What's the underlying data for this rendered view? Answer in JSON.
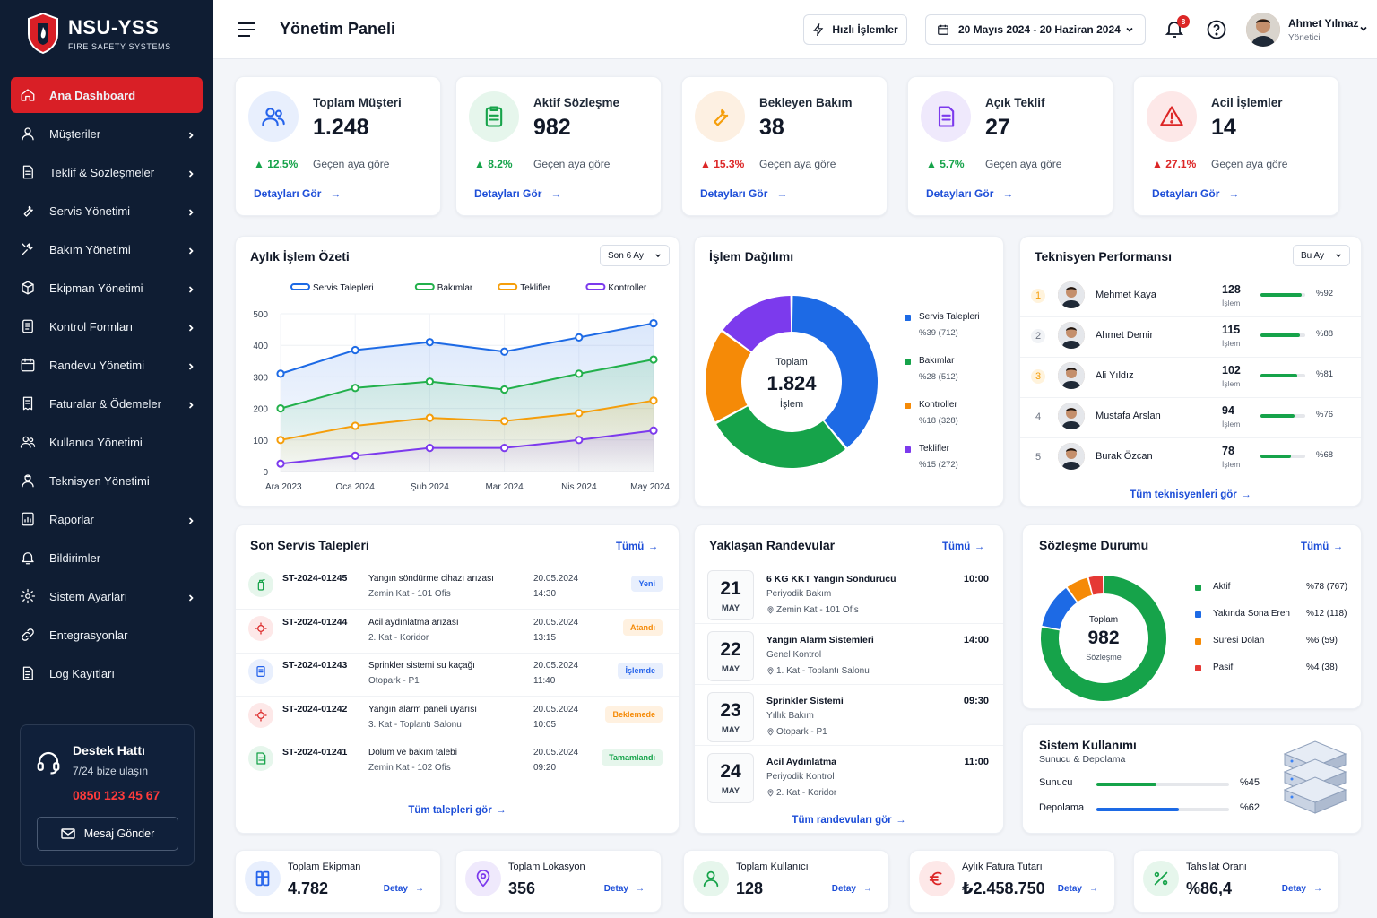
{
  "brand": {
    "title": "NSU-YSS",
    "subtitle": "FIRE SAFETY SYSTEMS"
  },
  "sidebar": {
    "items": [
      {
        "label": "Ana Dashboard",
        "icon": "home-icon",
        "active": true,
        "chevron": false
      },
      {
        "label": "Müşteriler",
        "icon": "user-icon",
        "chevron": true
      },
      {
        "label": "Teklif & Sözleşmeler",
        "icon": "document-icon",
        "chevron": true
      },
      {
        "label": "Servis Yönetimi",
        "icon": "wrench-icon",
        "chevron": true
      },
      {
        "label": "Bakım Yönetimi",
        "icon": "tools-icon",
        "chevron": true
      },
      {
        "label": "Ekipman Yönetimi",
        "icon": "box-icon",
        "chevron": true
      },
      {
        "label": "Kontrol Formları",
        "icon": "form-icon",
        "chevron": true
      },
      {
        "label": "Randevu Yönetimi",
        "icon": "calendar-icon",
        "chevron": true
      },
      {
        "label": "Faturalar & Ödemeler",
        "icon": "invoice-icon",
        "chevron": true
      },
      {
        "label": "Kullanıcı Yönetimi",
        "icon": "users-icon",
        "chevron": false
      },
      {
        "label": "Teknisyen Yönetimi",
        "icon": "technician-icon",
        "chevron": false
      },
      {
        "label": "Raporlar",
        "icon": "report-icon",
        "chevron": true
      },
      {
        "label": "Bildirimler",
        "icon": "bell-icon",
        "chevron": false
      },
      {
        "label": "Sistem Ayarları",
        "icon": "gear-icon",
        "chevron": true
      },
      {
        "label": "Entegrasyonlar",
        "icon": "link-icon",
        "chevron": false
      },
      {
        "label": "Log Kayıtları",
        "icon": "log-icon",
        "chevron": false
      }
    ]
  },
  "support": {
    "title": "Destek Hattı",
    "subtitle": "7/24 bize ulaşın",
    "phone": "0850 123 45 67",
    "button": "Mesaj Gönder"
  },
  "header": {
    "title": "Yönetim Paneli",
    "quick": "Hızlı İşlemler",
    "date_range": "20 Mayıs 2024 - 20 Haziran 2024",
    "notif_count": "8",
    "user_name": "Ahmet Yılmaz",
    "user_role": "Yönetici"
  },
  "stats": [
    {
      "title": "Toplam Müşteri",
      "value": "1.248",
      "delta": "12.5%",
      "dir": "up",
      "note": "Geçen aya göre",
      "link": "Detayları Gör",
      "color": "#2563eb",
      "bg": "#e8effd",
      "icon": "users-icon",
      "dcolor": "#16a34a"
    },
    {
      "title": "Aktif Sözleşme",
      "value": "982",
      "delta": "8.2%",
      "dir": "up",
      "note": "Geçen aya göre",
      "link": "Detayları Gör",
      "color": "#16a34a",
      "bg": "#e6f6ec",
      "icon": "clipboard-icon",
      "dcolor": "#16a34a"
    },
    {
      "title": "Bekleyen Bakım",
      "value": "38",
      "delta": "15.3%",
      "dir": "up",
      "note": "Geçen aya göre",
      "link": "Detayları Gör",
      "color": "#f59e0b",
      "bg": "#fdf0e2",
      "icon": "wrench-icon",
      "dcolor": "#dc2626"
    },
    {
      "title": "Açık Teklif",
      "value": "27",
      "delta": "5.7%",
      "dir": "up",
      "note": "Geçen aya göre",
      "link": "Detayları Gör",
      "color": "#7c3aed",
      "bg": "#efe9fc",
      "icon": "document-icon",
      "dcolor": "#16a34a"
    },
    {
      "title": "Acil İşlemler",
      "value": "14",
      "delta": "27.1%",
      "dir": "up",
      "note": "Geçen aya göre",
      "link": "Detayları Gör",
      "color": "#dc2626",
      "bg": "#fde8e8",
      "icon": "warning-icon",
      "dcolor": "#dc2626"
    }
  ],
  "monthly": {
    "title": "Aylık İşlem Özeti",
    "filter": "Son 6 Ay"
  },
  "distribution": {
    "title": "İşlem Dağılımı",
    "center_label": "Toplam",
    "center_value": "1.824",
    "center_sub": "İşlem",
    "items": [
      {
        "name": "Servis Talepleri",
        "detail": "%39 (712)",
        "color": "#1d6ae5"
      },
      {
        "name": "Bakımlar",
        "detail": "%28 (512)",
        "color": "#16a34a"
      },
      {
        "name": "Kontroller",
        "detail": "%18 (328)",
        "color": "#f58a07"
      },
      {
        "name": "Teklifler",
        "detail": "%15 (272)",
        "color": "#7c3aed"
      }
    ]
  },
  "technicians": {
    "title": "Teknisyen Performansı",
    "filter": "Bu Ay",
    "unit": "İşlem",
    "all": "Tüm teknisyenleri gör",
    "rows": [
      {
        "rank": "1",
        "name": "Mehmet Kaya",
        "count": "128",
        "pct": "%92",
        "p": 0.92
      },
      {
        "rank": "2",
        "name": "Ahmet Demir",
        "count": "115",
        "pct": "%88",
        "p": 0.88
      },
      {
        "rank": "3",
        "name": "Ali Yıldız",
        "count": "102",
        "pct": "%81",
        "p": 0.81
      },
      {
        "rank": "4",
        "name": "Mustafa Arslan",
        "count": "94",
        "pct": "%76",
        "p": 0.76
      },
      {
        "rank": "5",
        "name": "Burak Özcan",
        "count": "78",
        "pct": "%68",
        "p": 0.68
      }
    ]
  },
  "requests": {
    "title": "Son Servis Talepleri",
    "all_short": "Tümü",
    "all": "Tüm talepleri gör",
    "rows": [
      {
        "id": "ST-2024-01245",
        "desc": "Yangın söndürme cihazı arızası",
        "loc": "Zemin Kat - 101 Ofis",
        "date": "20.05.2024",
        "time": "14:30",
        "status": "Yeni",
        "sc": "#2563eb",
        "sb": "#e8effd",
        "ic": "#16a34a",
        "ib": "#e6f6ec"
      },
      {
        "id": "ST-2024-01244",
        "desc": "Acil aydınlatma arızası",
        "loc": "2. Kat - Koridor",
        "date": "20.05.2024",
        "time": "13:15",
        "status": "Atandı",
        "sc": "#f58a07",
        "sb": "#fff1e0",
        "ic": "#dc2626",
        "ib": "#fde8e8"
      },
      {
        "id": "ST-2024-01243",
        "desc": "Sprinkler sistemi su kaçağı",
        "loc": "Otopark - P1",
        "date": "20.05.2024",
        "time": "11:40",
        "status": "İşlemde",
        "sc": "#2563eb",
        "sb": "#e8effd",
        "ic": "#2563eb",
        "ib": "#e8effd"
      },
      {
        "id": "ST-2024-01242",
        "desc": "Yangın alarm paneli uyarısı",
        "loc": "3. Kat - Toplantı Salonu",
        "date": "20.05.2024",
        "time": "10:05",
        "status": "Beklemede",
        "sc": "#f58a07",
        "sb": "#fff1e0",
        "ic": "#dc2626",
        "ib": "#fde8e8"
      },
      {
        "id": "ST-2024-01241",
        "desc": "Dolum ve bakım talebi",
        "loc": "Zemin Kat - 102 Ofis",
        "date": "20.05.2024",
        "time": "09:20",
        "status": "Tamamlandı",
        "sc": "#16a34a",
        "sb": "#e6f6ec",
        "ic": "#16a34a",
        "ib": "#e6f6ec"
      }
    ]
  },
  "appointments": {
    "title": "Yaklaşan Randevular",
    "all_short": "Tümü",
    "all": "Tüm randevuları gör",
    "rows": [
      {
        "day": "21",
        "month": "MAY",
        "title": "6 KG KKT Yangın Söndürücü",
        "type": "Periyodik Bakım",
        "loc": "Zemin Kat - 101 Ofis",
        "time": "10:00"
      },
      {
        "day": "22",
        "month": "MAY",
        "title": "Yangın Alarm Sistemleri",
        "type": "Genel Kontrol",
        "loc": "1. Kat - Toplantı Salonu",
        "time": "14:00"
      },
      {
        "day": "23",
        "month": "MAY",
        "title": "Sprinkler Sistemi",
        "type": "Yıllık Bakım",
        "loc": "Otopark - P1",
        "time": "09:30"
      },
      {
        "day": "24",
        "month": "MAY",
        "title": "Acil Aydınlatma",
        "type": "Periyodik Kontrol",
        "loc": "2. Kat - Koridor",
        "time": "11:00"
      }
    ]
  },
  "contracts": {
    "title": "Sözleşme Durumu",
    "all_short": "Tümü",
    "center_label": "Toplam",
    "center_value": "982",
    "center_sub": "Sözleşme",
    "items": [
      {
        "name": "Aktif",
        "detail": "%78 (767)",
        "color": "#16a34a",
        "value": 78
      },
      {
        "name": "Yakında Sona Eren",
        "detail": "%12 (118)",
        "color": "#1d6ae5",
        "value": 12
      },
      {
        "name": "Süresi Dolan",
        "detail": "%6 (59)",
        "color": "#f58a07",
        "value": 6
      },
      {
        "name": "Pasif",
        "detail": "%4 (38)",
        "color": "#e53935",
        "value": 4
      }
    ]
  },
  "system": {
    "title": "Sistem Kullanımı",
    "subtitle": "Sunucu & Depolama",
    "rows": [
      {
        "name": "Sunucu",
        "pct": "%45",
        "p": 0.45,
        "color": "#16a34a"
      },
      {
        "name": "Depolama",
        "pct": "%62",
        "p": 0.62,
        "color": "#1d6ae5"
      }
    ]
  },
  "footer_stats": [
    {
      "title": "Toplam Ekipman",
      "value": "4.782",
      "link": "Detay",
      "color": "#2563eb",
      "bg": "#e8effd",
      "icon": "equipment-icon"
    },
    {
      "title": "Toplam Lokasyon",
      "value": "356",
      "link": "Detay",
      "color": "#7c3aed",
      "bg": "#efe9fc",
      "icon": "location-icon"
    },
    {
      "title": "Toplam Kullanıcı",
      "value": "128",
      "link": "Detay",
      "color": "#16a34a",
      "bg": "#e6f6ec",
      "icon": "user-icon"
    },
    {
      "title": "Aylık Fatura Tutarı",
      "value": "₺2.458.750",
      "link": "Detay",
      "color": "#dc2626",
      "bg": "#fde8e8",
      "icon": "euro-icon"
    },
    {
      "title": "Tahsilat Oranı",
      "value": "%86,4",
      "link": "Detay",
      "color": "#16a34a",
      "bg": "#e6f6ec",
      "icon": "percent-icon"
    }
  ],
  "chart_data": [
    {
      "type": "line",
      "title": "Aylık İşlem Özeti",
      "categories": [
        "Ara 2023",
        "Oca 2024",
        "Şub 2024",
        "Mar 2024",
        "Nis 2024",
        "May 2024"
      ],
      "ylim": [
        0,
        500
      ],
      "yticks": [
        0,
        100,
        200,
        300,
        400,
        500
      ],
      "series": [
        {
          "name": "Servis Talepleri",
          "color": "#1d6ae5",
          "values": [
            310,
            385,
            410,
            380,
            425,
            470
          ]
        },
        {
          "name": "Bakımlar",
          "color": "#22b04b",
          "values": [
            200,
            265,
            285,
            260,
            310,
            355
          ]
        },
        {
          "name": "Teklifler",
          "color": "#f59e0b",
          "values": [
            100,
            145,
            170,
            160,
            185,
            225
          ]
        },
        {
          "name": "Kontroller",
          "color": "#7c3aed",
          "values": [
            25,
            50,
            75,
            75,
            100,
            130
          ]
        }
      ]
    },
    {
      "type": "pie",
      "title": "İşlem Dağılımı",
      "categories": [
        "Servis Talepleri",
        "Bakımlar",
        "Kontroller",
        "Teklifler"
      ],
      "values": [
        712,
        512,
        328,
        272
      ]
    },
    {
      "type": "pie",
      "title": "Sözleşme Durumu",
      "categories": [
        "Aktif",
        "Yakında Sona Eren",
        "Süresi Dolan",
        "Pasif"
      ],
      "values": [
        767,
        118,
        59,
        38
      ]
    }
  ]
}
